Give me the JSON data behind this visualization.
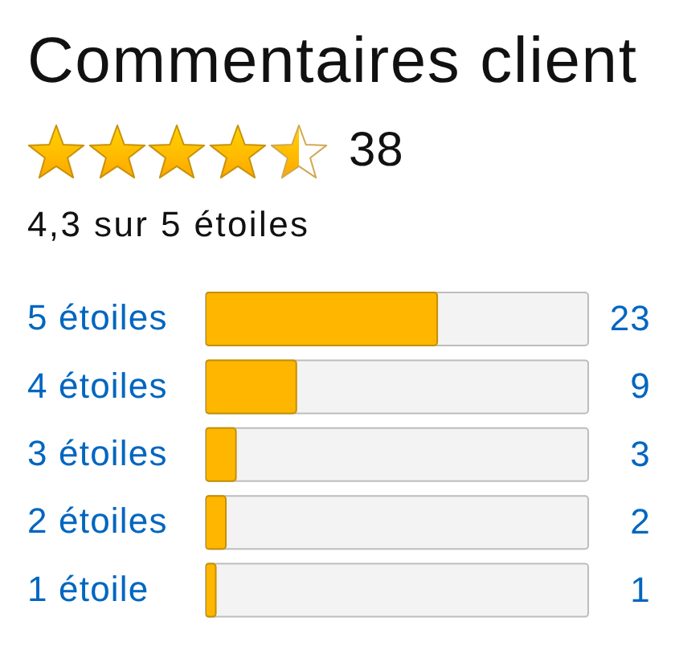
{
  "chart_data": {
    "type": "bar",
    "orientation": "horizontal",
    "title": "Commentaires client",
    "subtitle": "4,3 sur 5 étoiles",
    "annotations": [
      "38"
    ],
    "categories": [
      "5 étoiles",
      "4 étoiles",
      "3 étoiles",
      "2 étoiles",
      "1 étoile"
    ],
    "values": [
      23,
      9,
      3,
      2,
      1
    ],
    "color": "#ffb600",
    "xlim": [
      0,
      38
    ],
    "data_labels": true,
    "tick_labels": "y"
  }
}
